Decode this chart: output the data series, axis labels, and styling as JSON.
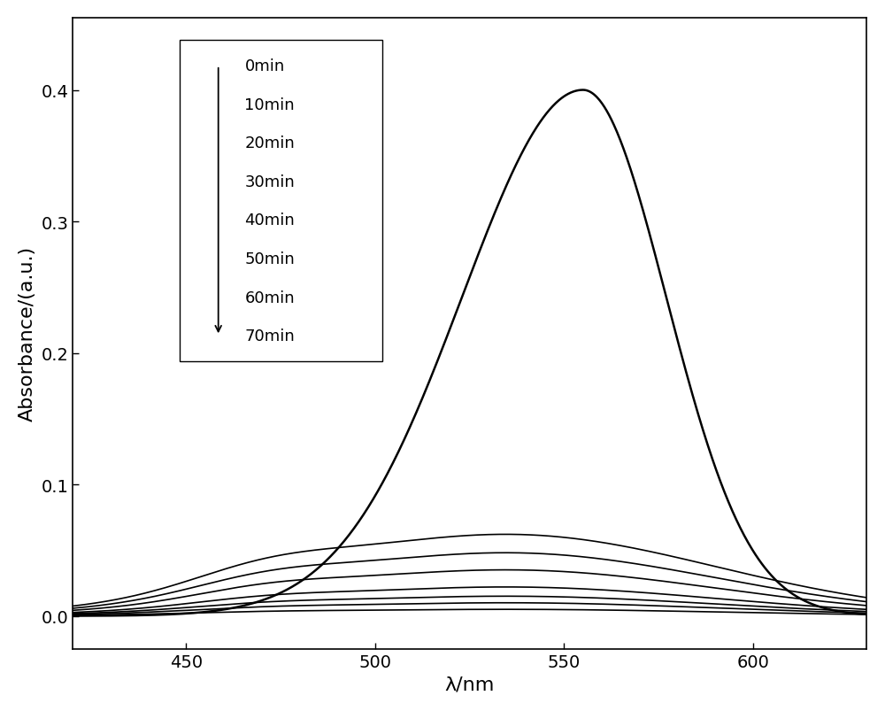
{
  "x_min": 420,
  "x_max": 630,
  "y_min": -0.025,
  "y_max": 0.455,
  "xlabel": "λ/nm",
  "ylabel": "Absorbance/(a.u.)",
  "peak_wavelength": 555,
  "labels": [
    "0min",
    "10min",
    "20min",
    "30min",
    "40min",
    "50min",
    "60min",
    "70min"
  ],
  "peak_heights": [
    0.4,
    0.062,
    0.048,
    0.035,
    0.022,
    0.015,
    0.01,
    0.005
  ],
  "line_color": "#000000",
  "background_color": "#ffffff",
  "tick_fontsize": 14,
  "label_fontsize": 16,
  "legend_fontsize": 13,
  "xticks": [
    450,
    500,
    550,
    600
  ],
  "yticks": [
    0.0,
    0.1,
    0.2,
    0.3,
    0.4
  ]
}
